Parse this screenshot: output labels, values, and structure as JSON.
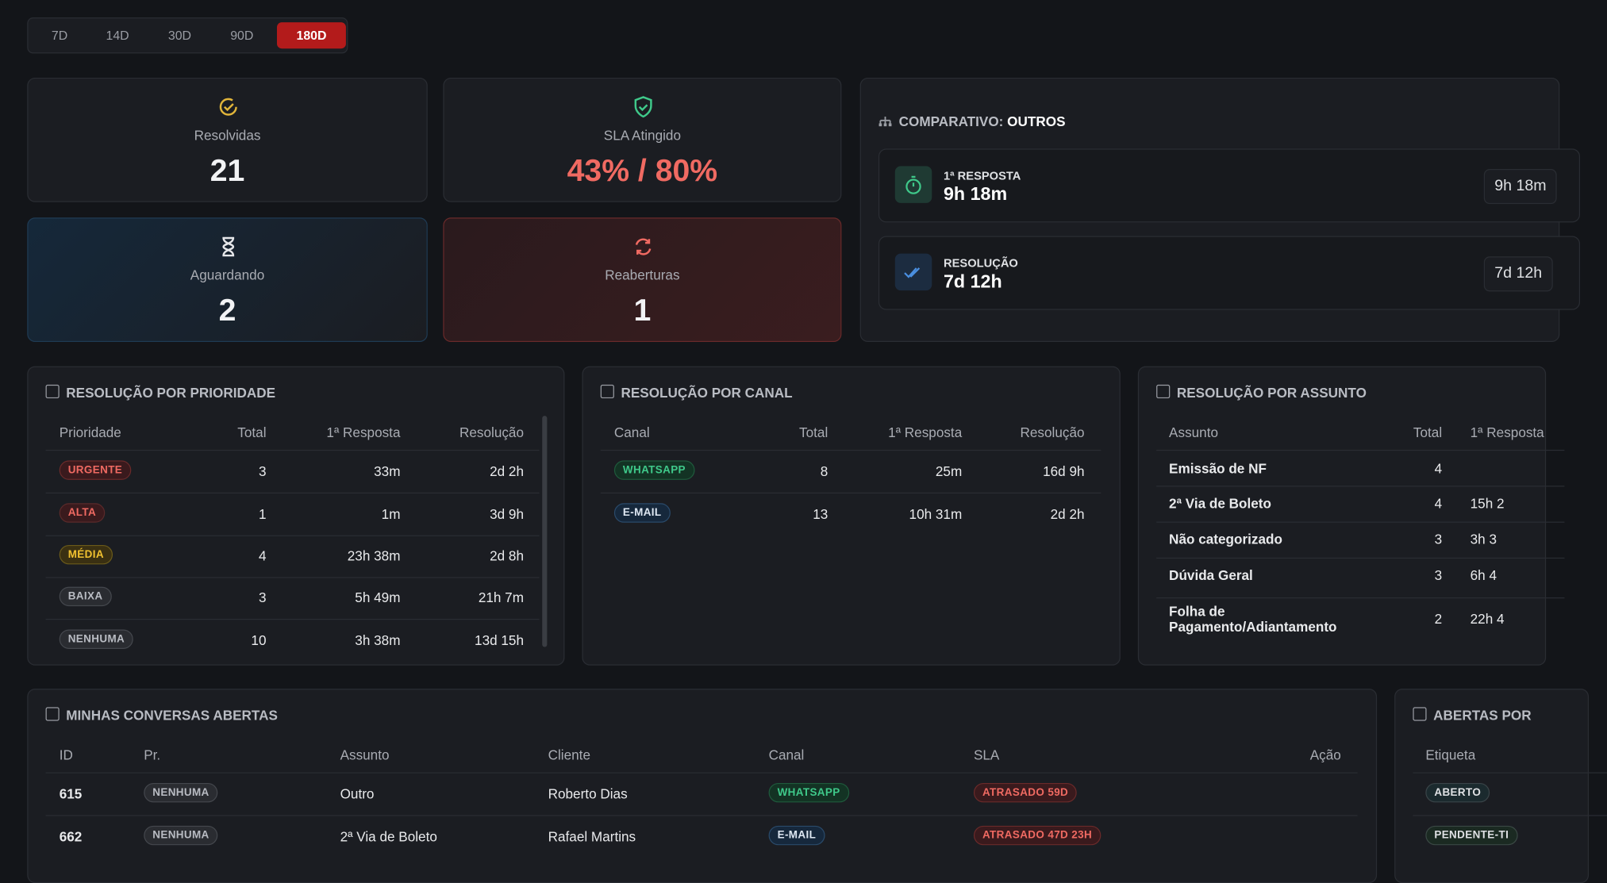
{
  "periods": [
    {
      "label": "7D",
      "active": false
    },
    {
      "label": "14D",
      "active": false
    },
    {
      "label": "30D",
      "active": false
    },
    {
      "label": "90D",
      "active": false
    },
    {
      "label": "180D",
      "active": true
    }
  ],
  "cards": [
    {
      "label": "Resolvidas",
      "value": "21"
    },
    {
      "label": "SLA Atingido",
      "value": "43% / 80%"
    },
    {
      "label": "Aguardando",
      "value": "2"
    },
    {
      "label": "Reaberturas",
      "value": "1"
    }
  ],
  "comparison": {
    "title": "COMPARATIVO:",
    "subject": "OUTROS",
    "metrics": [
      {
        "label": "1ª RESPOSTA",
        "value": "9h 18m",
        "compare": "9h 18m"
      },
      {
        "label": "RESOLUÇÃO",
        "value": "7d 12h",
        "compare": "7d 12h"
      }
    ]
  },
  "priority": {
    "title": "RESOLUÇÃO POR PRIORIDADE",
    "headers": [
      "Prioridade",
      "Total",
      "1ª Resposta",
      "Resolução"
    ],
    "rows": [
      [
        "URGENTE",
        "3",
        "33m",
        "2d 2h"
      ],
      [
        "ALTA",
        "1",
        "1m",
        "3d 9h"
      ],
      [
        "MÉDIA",
        "4",
        "23h 38m",
        "2d 8h"
      ],
      [
        "BAIXA",
        "3",
        "5h 49m",
        "21h 7m"
      ],
      [
        "NENHUMA",
        "10",
        "3h 38m",
        "13d 15h"
      ]
    ]
  },
  "channel": {
    "title": "RESOLUÇÃO POR CANAL",
    "headers": [
      "Canal",
      "Total",
      "1ª Resposta",
      "Resolução"
    ],
    "rows": [
      [
        "WHATSAPP",
        "8",
        "25m",
        "16d 9h"
      ],
      [
        "E-MAIL",
        "13",
        "10h 31m",
        "2d 2h"
      ]
    ]
  },
  "subject": {
    "title": "RESOLUÇÃO POR ASSUNTO",
    "headers": [
      "Assunto",
      "Total",
      "1ª Resposta"
    ],
    "rows": [
      [
        "Emissão de NF",
        "4",
        null
      ],
      [
        "2ª Via de Boleto",
        "4",
        "15h 2"
      ],
      [
        "Não categorizado",
        "3",
        "3h 3"
      ],
      [
        "Dúvida Geral",
        "3",
        "6h 4"
      ],
      [
        "Folha de Pagamento/Adiantamento",
        "2",
        "22h 4"
      ]
    ]
  },
  "open": {
    "title": "MINHAS CONVERSAS ABERTAS",
    "headers": [
      "ID",
      "Pr.",
      "Assunto",
      "Cliente",
      "Canal",
      "SLA",
      "Ação"
    ],
    "rows": [
      [
        "615",
        "NENHUMA",
        "Outro",
        "Roberto Dias",
        "WHATSAPP",
        "ATRASADO 59D"
      ],
      [
        "662",
        "NENHUMA",
        "2ª Via de Boleto",
        "Rafael Martins",
        "E-MAIL",
        "ATRASADO 47D 23H"
      ]
    ]
  },
  "tags": {
    "title": "ABERTAS POR",
    "headers": [
      "Etiqueta"
    ],
    "rows": [
      [
        "ABERTO"
      ],
      [
        "PENDENTE-TI"
      ]
    ]
  }
}
